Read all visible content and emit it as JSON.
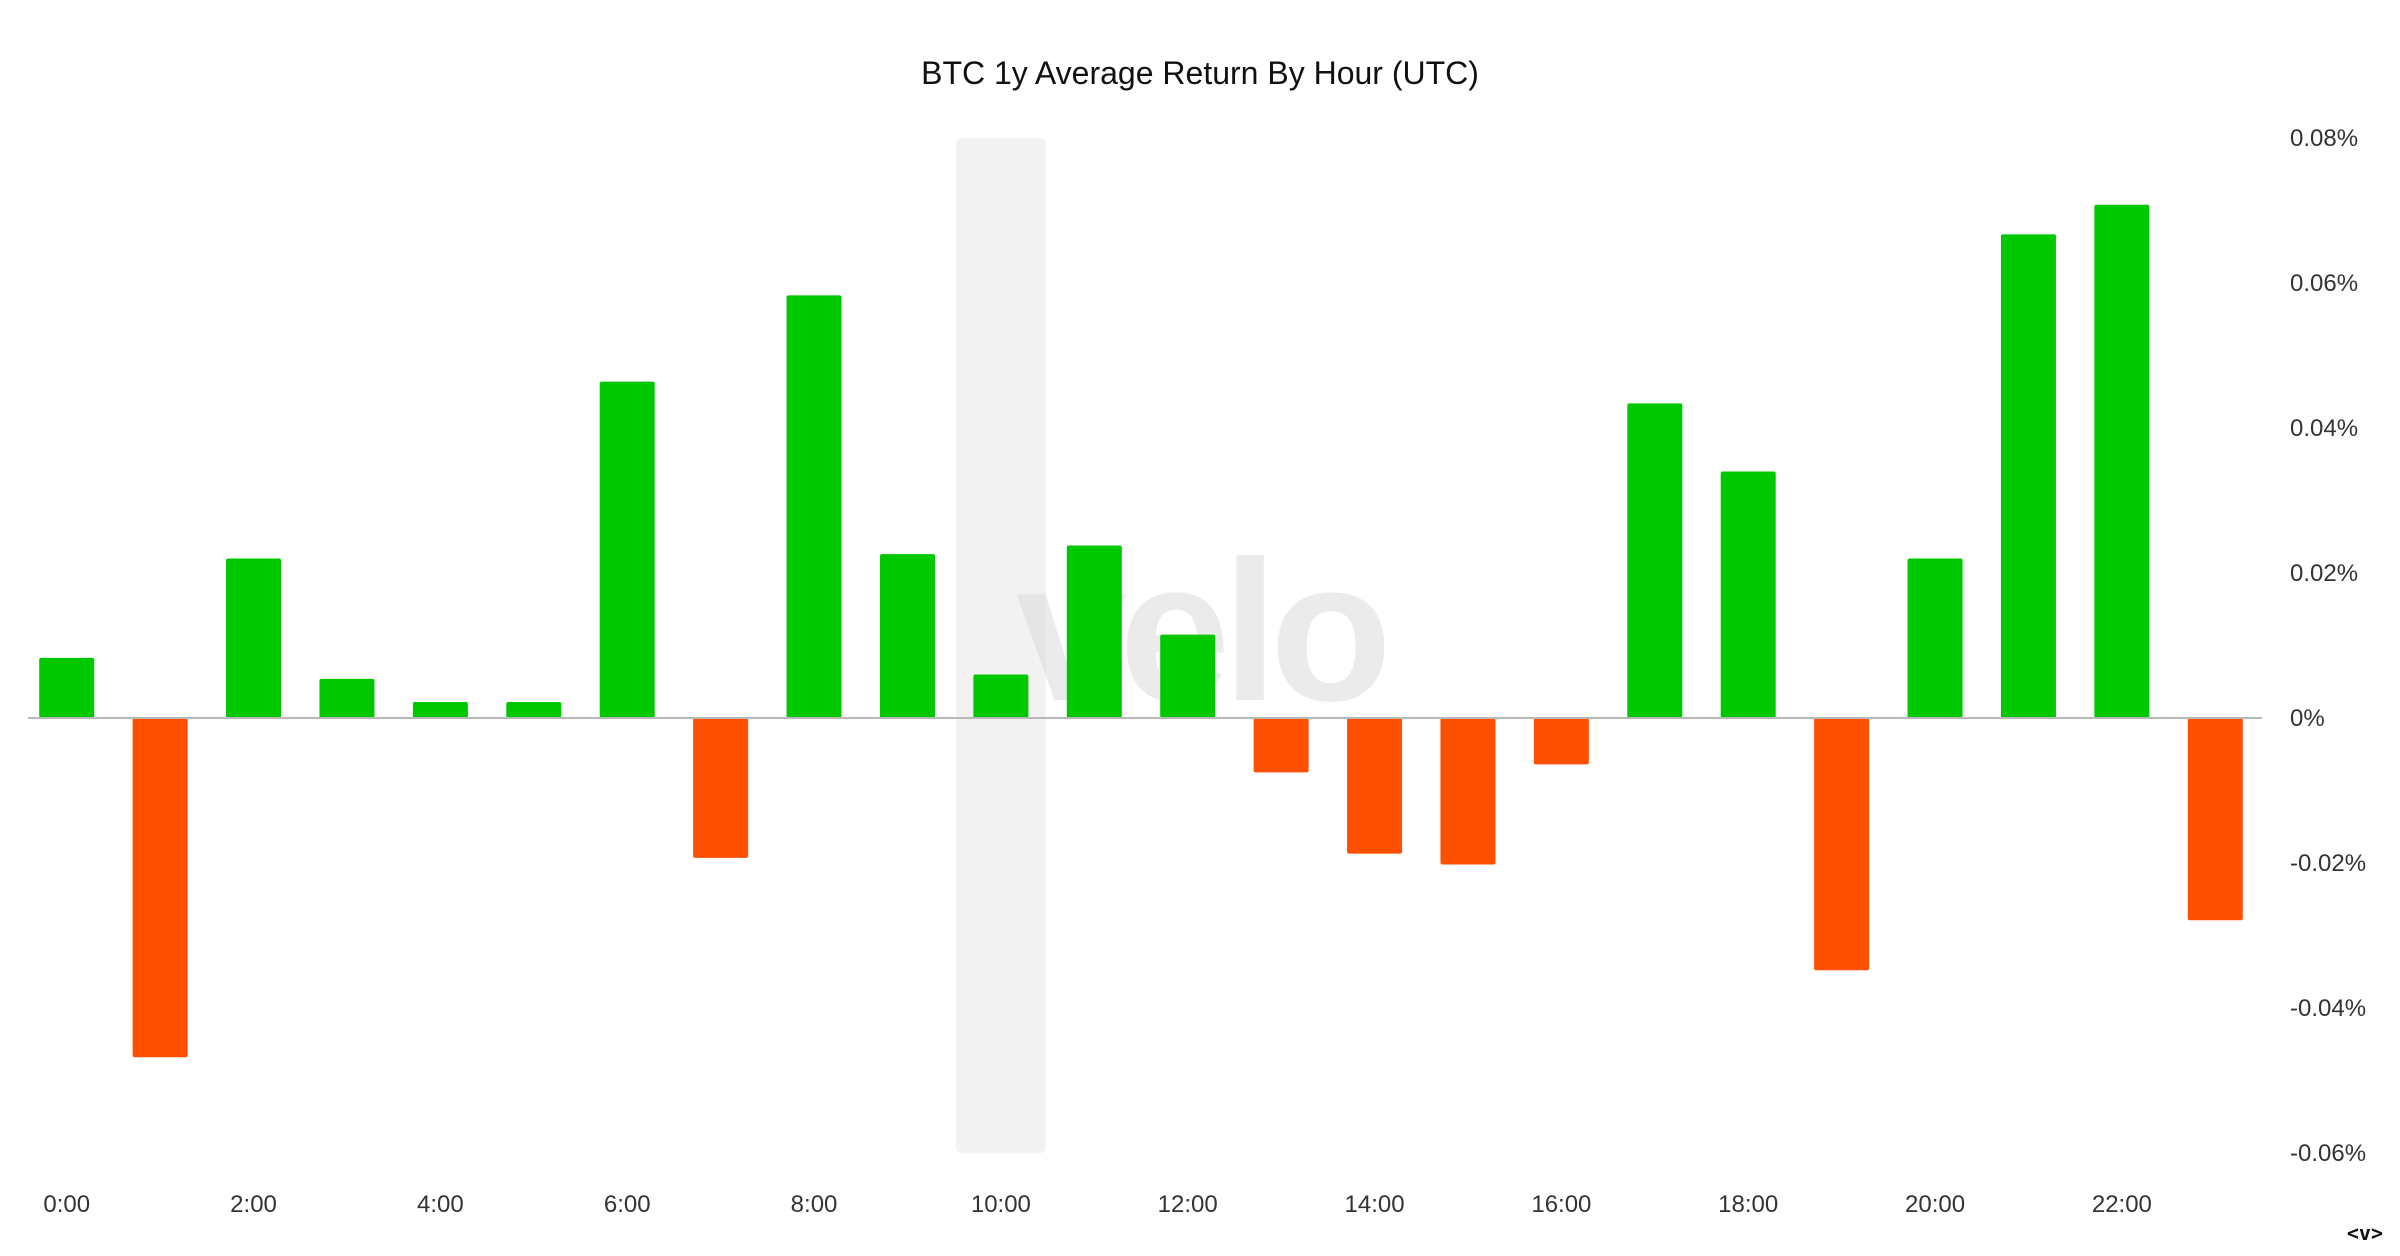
{
  "watermark": "velo",
  "nav_control": "<v>",
  "colors": {
    "positive": "#00c800",
    "negative": "#ff5000",
    "highlight": "#f2f2f2",
    "zero_line": "#b8b8b8"
  },
  "chart_data": {
    "type": "bar",
    "title": "BTC 1y Average Return By Hour (UTC)",
    "xlabel": "",
    "ylabel": "",
    "categories": [
      "0:00",
      "1:00",
      "2:00",
      "3:00",
      "4:00",
      "5:00",
      "6:00",
      "7:00",
      "8:00",
      "9:00",
      "10:00",
      "11:00",
      "12:00",
      "13:00",
      "14:00",
      "15:00",
      "16:00",
      "17:00",
      "18:00",
      "19:00",
      "20:00",
      "21:00",
      "22:00",
      "23:00"
    ],
    "x_tick_labels": [
      "0:00",
      "2:00",
      "4:00",
      "6:00",
      "8:00",
      "10:00",
      "12:00",
      "14:00",
      "16:00",
      "18:00",
      "20:00",
      "22:00"
    ],
    "values": [
      0.0083,
      -0.0468,
      0.022,
      0.0054,
      0.0022,
      0.0022,
      0.0464,
      -0.0193,
      0.0583,
      0.0226,
      0.006,
      0.0238,
      0.0115,
      -0.0075,
      -0.0187,
      -0.0202,
      -0.0064,
      0.0434,
      0.034,
      -0.0348,
      0.022,
      0.0667,
      0.0708,
      -0.0279
    ],
    "y_unit": "%",
    "ylim": [
      -0.06,
      0.08
    ],
    "y_ticks": [
      0.08,
      0.06,
      0.04,
      0.02,
      0,
      -0.02,
      -0.04,
      -0.06
    ],
    "y_tick_labels": [
      "0.08%",
      "0.06%",
      "0.04%",
      "0.02%",
      "0%",
      "-0.02%",
      "-0.04%",
      "-0.06%"
    ],
    "y_axis_position": "right",
    "highlighted_category": "10:00",
    "grid": false,
    "legend": "none"
  }
}
